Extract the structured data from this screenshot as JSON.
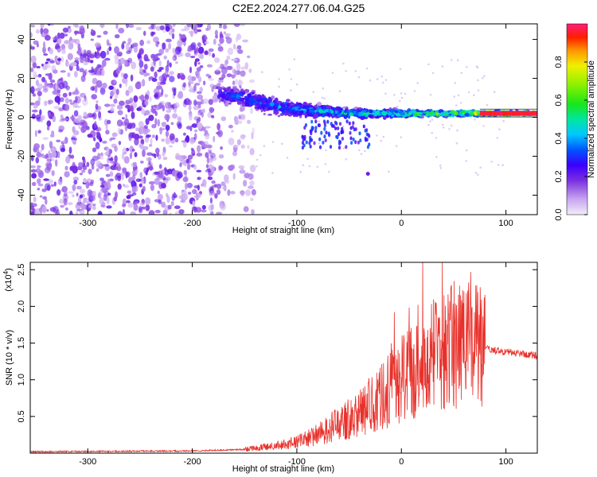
{
  "title": "C2E2.2024.277.06.04.G25",
  "chart_data": [
    {
      "type": "heatmap",
      "xlabel": "Height of straight line (km)",
      "ylabel": "Frequency (Hz)",
      "xlim": [
        -355,
        130
      ],
      "ylim": [
        -50,
        48
      ],
      "x_ticks": [
        -300,
        -200,
        -100,
        0,
        100
      ],
      "y_ticks": [
        -40,
        -20,
        0,
        20,
        40
      ],
      "colorbar": {
        "label": "Normalized spectral amplitude",
        "range": [
          0,
          1
        ],
        "ticks": [
          0.0,
          0.2,
          0.4,
          0.6,
          0.8
        ],
        "tick_labels": [
          "0.0",
          "0.2",
          "0.4",
          "0.6",
          "0.8"
        ]
      },
      "trace": {
        "x": [
          -175,
          -150,
          -125,
          -100,
          -75,
          -50,
          -25,
          0,
          25,
          50,
          75,
          100,
          130
        ],
        "center_hz": [
          12,
          10,
          6,
          4,
          3,
          2,
          2,
          2,
          2,
          2,
          2,
          2,
          2
        ],
        "halfwidth_hz": [
          6,
          6,
          6,
          5,
          4,
          3,
          3,
          2.5,
          2,
          2,
          1.5,
          1.2,
          1.2
        ],
        "amplitude": [
          0.35,
          0.4,
          0.45,
          0.45,
          0.5,
          0.55,
          0.6,
          0.65,
          0.7,
          0.75,
          0.85,
          0.95,
          1.0
        ]
      },
      "noise_region_x": [
        -355,
        -140
      ]
    },
    {
      "type": "line",
      "xlabel": "Height of straight line (km)",
      "ylabel": "SNR (10 * v/v)",
      "y_scale_label": "(x10",
      "y_scale_exponent": "4",
      "xlim": [
        -355,
        130
      ],
      "ylim": [
        0,
        2.6
      ],
      "x_ticks": [
        -300,
        -200,
        -100,
        0,
        100
      ],
      "y_ticks": [
        0.5,
        1.0,
        1.5,
        2.0,
        2.5
      ],
      "y_tick_labels": [
        "0.5",
        "1.0",
        "1.5",
        "2.0",
        "2.5"
      ],
      "series": [
        {
          "color": "#e8302a",
          "envelope": {
            "x": [
              -355,
              -200,
              -150,
              -120,
              -100,
              -80,
              -60,
              -40,
              -20,
              0,
              20,
              40,
              60,
              80,
              100,
              130
            ],
            "y": [
              0.02,
              0.03,
              0.05,
              0.1,
              0.15,
              0.25,
              0.4,
              0.55,
              0.75,
              1.0,
              1.25,
              1.4,
              1.5,
              1.42,
              1.38,
              1.33
            ]
          }
        }
      ]
    }
  ]
}
